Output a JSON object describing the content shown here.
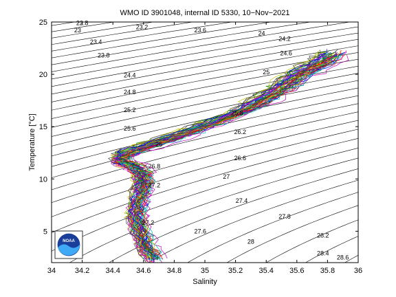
{
  "chart_data": {
    "type": "line",
    "title": "WMO ID 3901048, internal ID 5330, 10−Nov−2021",
    "xlabel": "Salinity",
    "ylabel": "Temperature [°C]",
    "xlim": [
      34,
      36
    ],
    "ylim": [
      2,
      25
    ],
    "xticks": [
      "34",
      "34.2",
      "34.4",
      "34.6",
      "34.8",
      "35",
      "35.2",
      "35.4",
      "35.6",
      "35.8",
      "36"
    ],
    "yticks": [
      "5",
      "10",
      "15",
      "20",
      "25"
    ],
    "grid": false,
    "legend": "none",
    "isopycnal_labels": [
      {
        "text": "22.8",
        "s": 34.2,
        "t": 24.9
      },
      {
        "text": "23",
        "s": 34.17,
        "t": 24.2
      },
      {
        "text": "23.2",
        "s": 34.59,
        "t": 24.5
      },
      {
        "text": "23.4",
        "s": 34.29,
        "t": 23.1
      },
      {
        "text": "23.6",
        "s": 34.97,
        "t": 24.2
      },
      {
        "text": "23.8",
        "s": 34.34,
        "t": 21.8
      },
      {
        "text": "24",
        "s": 35.37,
        "t": 23.9
      },
      {
        "text": "24.2",
        "s": 35.52,
        "t": 23.4
      },
      {
        "text": "24.4",
        "s": 34.51,
        "t": 19.9
      },
      {
        "text": "24.6",
        "s": 35.53,
        "t": 22.0
      },
      {
        "text": "24.8",
        "s": 34.51,
        "t": 18.3
      },
      {
        "text": "25",
        "s": 35.4,
        "t": 20.2
      },
      {
        "text": "25.2",
        "s": 34.51,
        "t": 16.6
      },
      {
        "text": "25.6",
        "s": 34.51,
        "t": 14.8
      },
      {
        "text": "25.8",
        "s": 35.21,
        "t": 16.3
      },
      {
        "text": "26",
        "s": 34.7,
        "t": 13.3
      },
      {
        "text": "26.2",
        "s": 35.23,
        "t": 14.5
      },
      {
        "text": "26.6",
        "s": 35.23,
        "t": 12.0
      },
      {
        "text": "26.8",
        "s": 34.67,
        "t": 11.2
      },
      {
        "text": "27",
        "s": 35.14,
        "t": 10.2
      },
      {
        "text": "27.2",
        "s": 34.67,
        "t": 9.4
      },
      {
        "text": "27.4",
        "s": 35.24,
        "t": 7.9
      },
      {
        "text": "27.2",
        "s": 34.63,
        "t": 5.8
      },
      {
        "text": "27.8",
        "s": 35.52,
        "t": 6.4
      },
      {
        "text": "27.6",
        "s": 34.97,
        "t": 5.0
      },
      {
        "text": "28",
        "s": 35.3,
        "t": 4.0
      },
      {
        "text": "28.2",
        "s": 35.77,
        "t": 4.6
      },
      {
        "text": "28.4",
        "s": 35.77,
        "t": 2.9
      },
      {
        "text": "28.6",
        "s": 35.9,
        "t": 2.5
      }
    ],
    "envelope": {
      "description_color_cycle": [
        "#0000ff",
        "#008000",
        "#ff0000",
        "#00bfbf",
        "#bf00bf",
        "#bfbf00",
        "#404040"
      ],
      "center": [
        {
          "s": 34.67,
          "t": 2.3
        },
        {
          "s": 34.62,
          "t": 3.5
        },
        {
          "s": 34.58,
          "t": 5.0
        },
        {
          "s": 34.55,
          "t": 6.5
        },
        {
          "s": 34.57,
          "t": 8.0
        },
        {
          "s": 34.6,
          "t": 9.5
        },
        {
          "s": 34.6,
          "t": 10.5
        },
        {
          "s": 34.53,
          "t": 11.3
        },
        {
          "s": 34.45,
          "t": 11.7
        },
        {
          "s": 34.47,
          "t": 12.3
        },
        {
          "s": 34.6,
          "t": 13.0
        },
        {
          "s": 34.85,
          "t": 14.2
        },
        {
          "s": 35.05,
          "t": 15.3
        },
        {
          "s": 35.25,
          "t": 16.5
        },
        {
          "s": 35.4,
          "t": 17.7
        },
        {
          "s": 35.52,
          "t": 18.8
        },
        {
          "s": 35.62,
          "t": 20.0
        },
        {
          "s": 35.75,
          "t": 21.0
        },
        {
          "s": 35.85,
          "t": 22.0
        }
      ]
    }
  },
  "logo": {
    "text": "NOAA"
  }
}
